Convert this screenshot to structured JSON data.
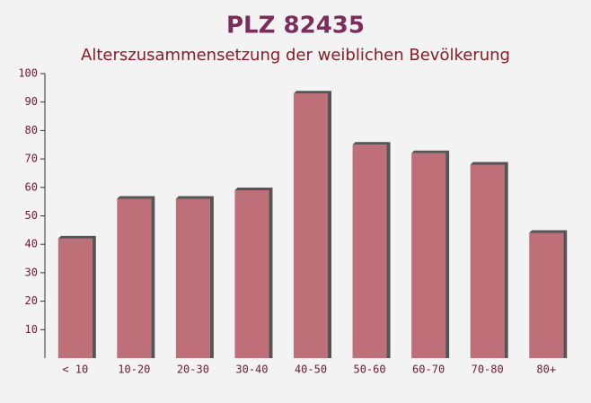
{
  "chart_data": {
    "type": "bar",
    "title": "PLZ 82435",
    "subtitle": "Alterszusammensetzung der weiblichen Bevölkerung",
    "categories": [
      "< 10",
      "10-20",
      "20-30",
      "30-40",
      "40-50",
      "50-60",
      "60-70",
      "70-80",
      "80+"
    ],
    "values": [
      42,
      56,
      56,
      59,
      93,
      75,
      72,
      68,
      44
    ],
    "color": "#b8606a",
    "ylim": [
      0,
      100
    ],
    "yticks": [
      10,
      20,
      30,
      40,
      50,
      60,
      70,
      80,
      90,
      100
    ],
    "grid": false
  }
}
